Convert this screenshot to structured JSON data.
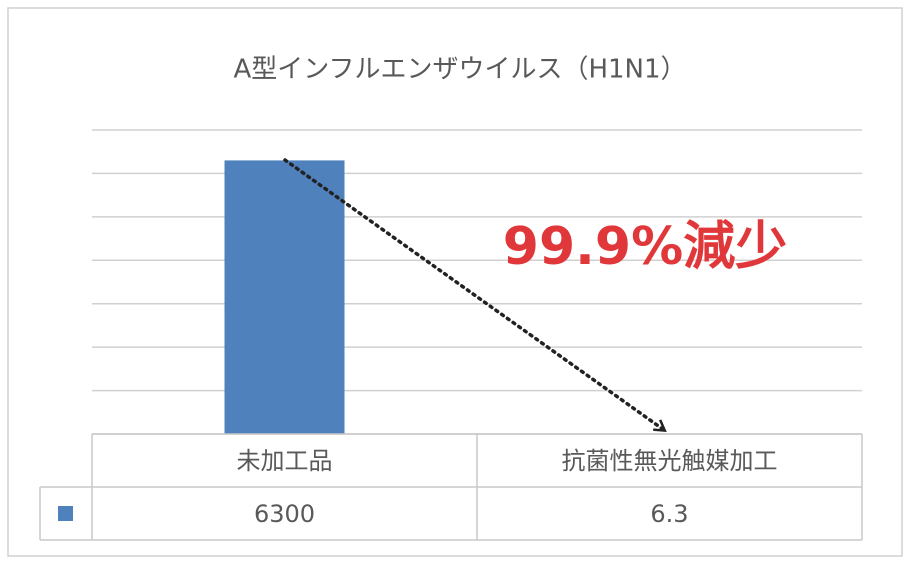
{
  "chart_data": {
    "type": "bar",
    "title": "A型インフルエンザウイルス（H1N1）",
    "annotation": "99.9%減少",
    "categories": [
      "未加工品",
      "抗菌性無光触媒加工"
    ],
    "values": [
      6300,
      6.3
    ],
    "color": "#4f81bd",
    "ylim": [
      0,
      7000
    ],
    "yticks": [
      0,
      1000,
      2000,
      3000,
      4000,
      5000,
      6000,
      7000
    ],
    "grid": true
  }
}
